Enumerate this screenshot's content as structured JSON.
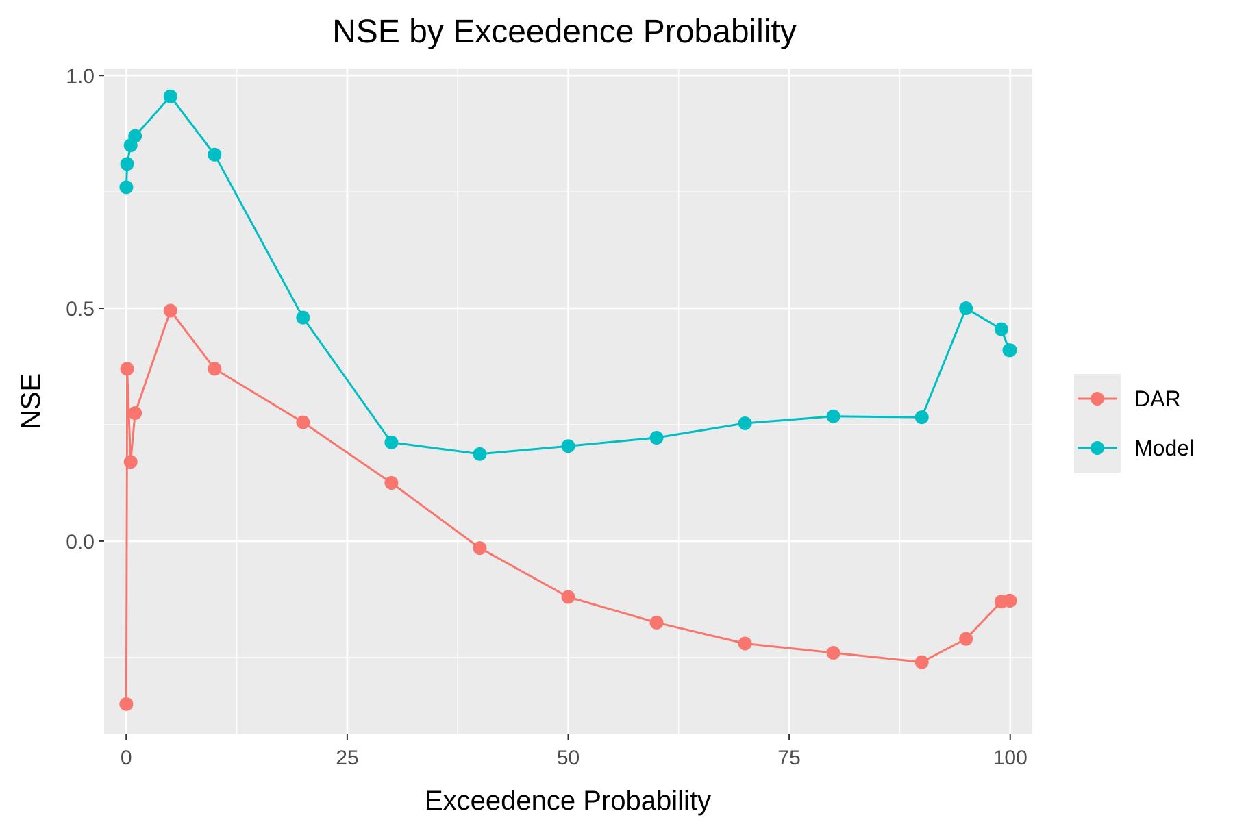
{
  "chart_data": {
    "type": "line",
    "title": "NSE by Exceedence Probability",
    "xlabel": "Exceedence Probability",
    "ylabel": "NSE",
    "xlim": [
      -2.5,
      102.5
    ],
    "ylim": [
      -0.415,
      1.015
    ],
    "x_ticks": [
      0,
      25,
      50,
      75,
      100
    ],
    "x_tick_labels": [
      "0",
      "25",
      "50",
      "75",
      "100"
    ],
    "y_ticks": [
      0.0,
      0.5,
      1.0
    ],
    "y_tick_labels": [
      "0.0",
      "0.5",
      "1.0"
    ],
    "x_minor_ticks": [
      12.5,
      37.5,
      62.5,
      87.5
    ],
    "y_minor_ticks": [
      -0.25,
      0.25,
      0.75
    ],
    "grid": true,
    "panel_background": "#ebebeb",
    "grid_color": "#ffffff",
    "legend_position": "right",
    "series": [
      {
        "name": "DAR",
        "color": "#f8766d",
        "x": [
          0.01,
          0.1,
          0.5,
          1,
          5,
          10,
          20,
          30,
          40,
          50,
          60,
          70,
          80,
          90,
          95,
          99,
          99.9,
          99.99
        ],
        "y": [
          -0.35,
          0.37,
          0.17,
          0.275,
          0.495,
          0.37,
          0.255,
          0.125,
          -0.015,
          -0.12,
          -0.175,
          -0.22,
          -0.24,
          -0.26,
          -0.21,
          -0.13,
          -0.128,
          -0.128
        ]
      },
      {
        "name": "Model",
        "color": "#00bfc4",
        "x": [
          0.01,
          0.1,
          0.5,
          1,
          5,
          10,
          20,
          30,
          40,
          50,
          60,
          70,
          80,
          90,
          95,
          99,
          99.9,
          99.99
        ],
        "y": [
          0.76,
          0.81,
          0.85,
          0.87,
          0.955,
          0.83,
          0.48,
          0.212,
          0.187,
          0.204,
          0.222,
          0.253,
          0.268,
          0.266,
          0.5,
          0.455,
          0.41,
          0.41
        ]
      }
    ]
  }
}
